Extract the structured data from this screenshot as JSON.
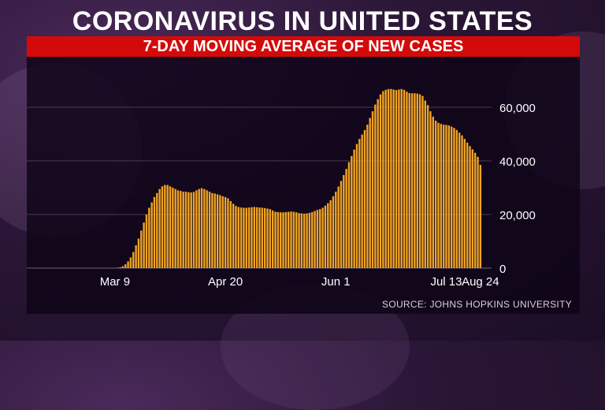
{
  "title": "CORONAVIRUS IN UNITED STATES",
  "subtitle": "7-DAY MOVING AVERAGE OF NEW CASES",
  "source": "SOURCE: JOHNS HOPKINS UNIVERSITY",
  "colors": {
    "bar": "#f0a422",
    "subtitle_bar": "#d40a0a",
    "grid": "#5a4f63"
  },
  "chart_data": {
    "type": "bar",
    "title": "CORONAVIRUS IN UNITED STATES",
    "subtitle": "7-DAY MOVING AVERAGE OF NEW CASES",
    "xlabel": "",
    "ylabel": "",
    "ylim": [
      0,
      70000
    ],
    "yticks": [
      0,
      20000,
      40000,
      60000
    ],
    "ytick_labels": [
      "0",
      "20,000",
      "40,000",
      "60,000"
    ],
    "xtick_labels": [
      "Mar 9",
      "Apr 20",
      "Jun 1",
      "Jul 13",
      "Aug 24"
    ],
    "grid": true,
    "y_axis_side": "right",
    "start_date": "Mar 1",
    "end_date": "Aug 24",
    "series": [
      {
        "values": [
          0,
          0,
          0,
          0,
          0,
          0,
          0,
          0,
          0,
          100,
          300,
          700,
          1400,
          2500,
          4000,
          6000,
          8500,
          11000,
          14000,
          17000,
          20000,
          22500,
          24500,
          26500,
          28000,
          29500,
          30500,
          31000,
          31000,
          30500,
          30000,
          29500,
          29000,
          28800,
          28500,
          28500,
          28300,
          28200,
          28400,
          29000,
          29500,
          29800,
          29500,
          29000,
          28500,
          28000,
          27800,
          27500,
          27200,
          26800,
          26500,
          26000,
          25000,
          24000,
          23200,
          22800,
          22600,
          22500,
          22500,
          22600,
          22700,
          22800,
          22700,
          22600,
          22500,
          22400,
          22200,
          22000,
          21500,
          21000,
          20900,
          20800,
          20800,
          20900,
          21000,
          21100,
          21000,
          20800,
          20500,
          20400,
          20300,
          20400,
          20600,
          20900,
          21300,
          21700,
          22000,
          22500,
          23300,
          24200,
          25300,
          26800,
          28500,
          30400,
          32500,
          34700,
          37000,
          39500,
          41800,
          44200,
          46300,
          48200,
          49800,
          51500,
          53500,
          56000,
          58500,
          61000,
          63000,
          64800,
          66000,
          66500,
          66800,
          66800,
          66600,
          66400,
          66600,
          66800,
          66500,
          65800,
          65300,
          65200,
          65200,
          65100,
          64800,
          64200,
          62500,
          60800,
          58500,
          56500,
          55000,
          54200,
          53800,
          53500,
          53400,
          53200,
          52800,
          52300,
          51500,
          50500,
          49500,
          48200,
          46800,
          45500,
          44300,
          43000,
          41500,
          38500
        ]
      }
    ]
  }
}
